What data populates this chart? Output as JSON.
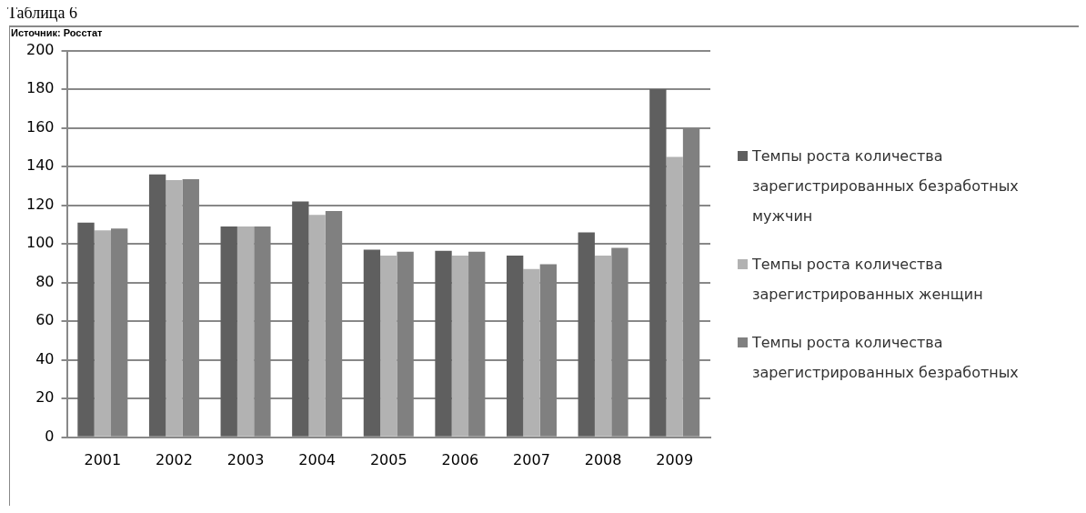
{
  "chart_data": {
    "type": "bar",
    "title": "Таблица 6",
    "annotations": [
      "Источник: Росстат"
    ],
    "categories": [
      "2001",
      "2002",
      "2003",
      "2004",
      "2005",
      "2006",
      "2007",
      "2008",
      "2009"
    ],
    "series": [
      {
        "name": "Темпы роста количества зарегистрированных безработных мужчин",
        "color": "#5f5f5f",
        "values": [
          111,
          136,
          109,
          122,
          97,
          96.5,
          94,
          106,
          180
        ]
      },
      {
        "name": "Темпы роста количества зарегистрированных женщин",
        "color": "#b2b2b2",
        "values": [
          107,
          133,
          109,
          115,
          94,
          94,
          87,
          94,
          145
        ]
      },
      {
        "name": "Темпы роста количества зарегистрированных безработных",
        "color": "#808080",
        "values": [
          108,
          133.5,
          109,
          117,
          96,
          96,
          89.5,
          98,
          160
        ]
      }
    ],
    "ylim": [
      0,
      200
    ],
    "yticks": [
      0,
      20,
      40,
      60,
      80,
      100,
      120,
      140,
      160,
      180,
      200
    ],
    "grid": "y",
    "legend": "right"
  }
}
